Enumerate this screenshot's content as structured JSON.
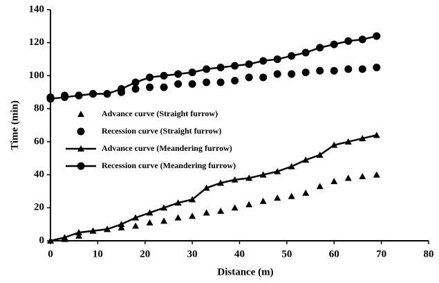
{
  "chart_data": {
    "type": "line",
    "x_label": "Distance (m)",
    "y_label": "Time (min)",
    "x": [
      0,
      3,
      6,
      9,
      12,
      15,
      18,
      21,
      24,
      27,
      30,
      33,
      36,
      39,
      42,
      45,
      48,
      51,
      54,
      57,
      60,
      63,
      66,
      69
    ],
    "xlim": [
      0,
      80
    ],
    "xticks": [
      0,
      10,
      20,
      30,
      40,
      50,
      60,
      70,
      80
    ],
    "ylim": [
      0,
      140
    ],
    "yticks": [
      0,
      20,
      40,
      60,
      80,
      100,
      120,
      140
    ],
    "grid": false,
    "legend_position": "left",
    "series": [
      {
        "name": "Advance curve (Straight furrow)",
        "color": "#000000",
        "marker": "triangle",
        "line": false,
        "values": [
          0,
          1,
          3,
          6,
          7,
          8,
          9,
          11,
          12,
          14,
          15,
          17,
          18,
          20,
          22,
          24,
          26,
          27,
          29,
          33,
          36,
          38,
          39,
          40
        ]
      },
      {
        "name": "Recession curve (Straight furrow)",
        "color": "#000000",
        "marker": "circle",
        "line": false,
        "values": [
          87,
          88,
          88,
          89,
          89,
          90,
          92,
          93,
          93,
          95,
          95,
          96,
          96,
          97,
          99,
          99,
          101,
          101,
          102,
          103,
          103,
          104,
          104,
          105
        ]
      },
      {
        "name": "Advance curve (Meandering furrow)",
        "color": "#000000",
        "marker": "triangle",
        "line": true,
        "values": [
          0,
          2,
          5,
          6,
          7,
          10,
          14,
          17,
          20,
          23,
          25,
          32,
          35,
          37,
          38,
          40,
          42,
          45,
          49,
          52,
          58,
          60,
          62,
          64
        ]
      },
      {
        "name": "Recession curve (Meandering furrow)",
        "color": "#000000",
        "marker": "circle",
        "line": true,
        "values": [
          86,
          87,
          88,
          89,
          89,
          92,
          96,
          99,
          100,
          101,
          102,
          104,
          105,
          106,
          107,
          109,
          110,
          112,
          114,
          117,
          119,
          121,
          122,
          124
        ]
      }
    ]
  }
}
